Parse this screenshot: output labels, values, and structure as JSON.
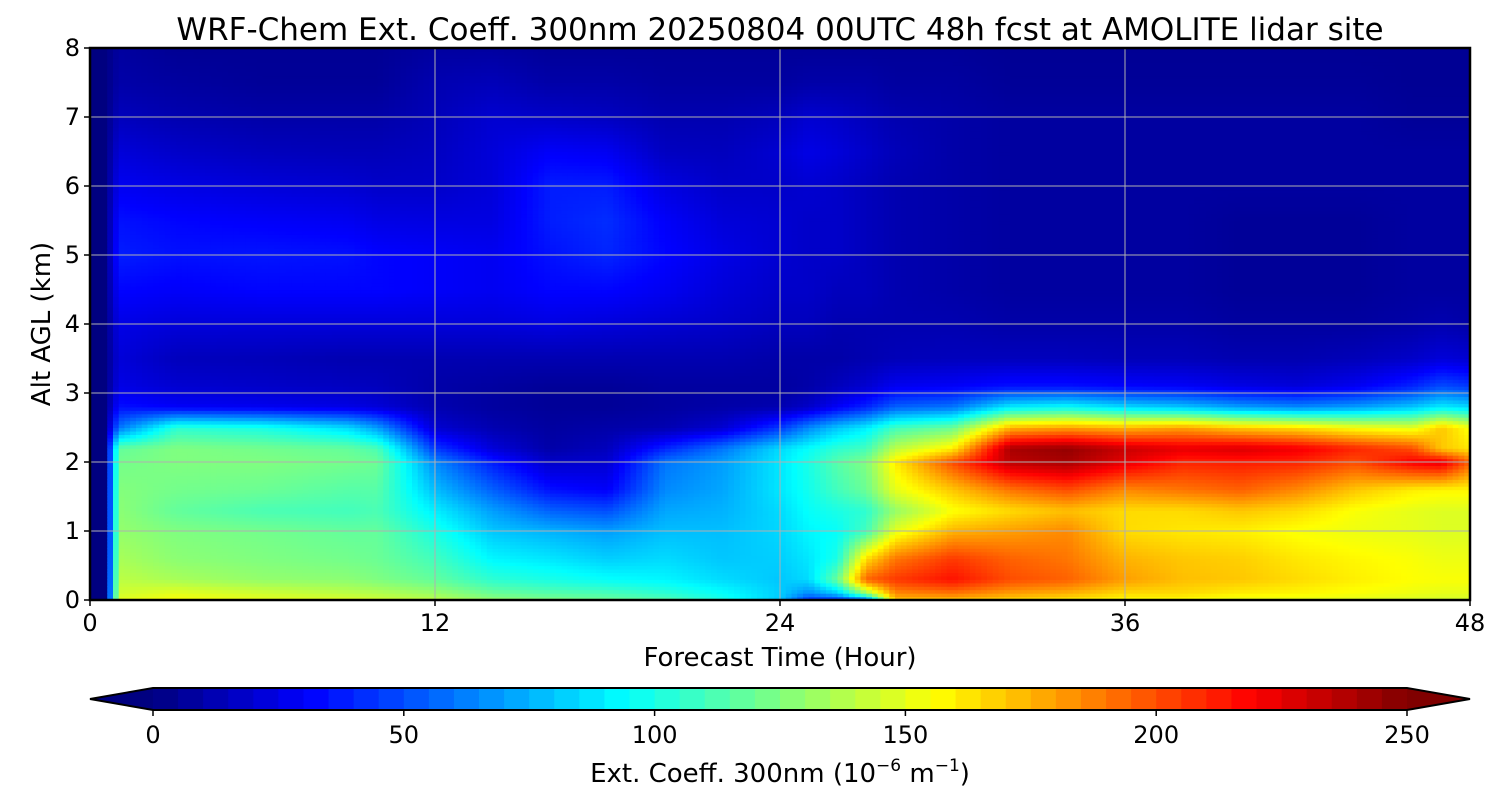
{
  "chart_data": {
    "type": "heatmap",
    "title": "WRF-Chem Ext. Coeff. 300nm  20250804 00UTC 48h fcst at AMOLITE lidar site",
    "xlabel": "Forecast Time (Hour)",
    "ylabel": "Alt AGL (km)",
    "xlim": [
      0,
      48
    ],
    "ylim": [
      0,
      8
    ],
    "xticks": [
      0,
      12,
      24,
      36,
      48
    ],
    "yticks": [
      0,
      1,
      2,
      3,
      4,
      5,
      6,
      7,
      8
    ],
    "grid": true,
    "colormap": "jet",
    "colorbar": {
      "orientation": "horizontal",
      "placement": "bottom",
      "min": 0,
      "max": 250,
      "ticks": [
        0,
        50,
        100,
        150,
        200,
        250
      ],
      "label": "Ext. Coeff. 300nm  (10",
      "label_exp1": "−6",
      "label_mid": " m",
      "label_exp2": "−1",
      "label_end": ")",
      "extend": "both"
    },
    "grid_x": [
      0,
      0.5,
      1,
      3,
      6,
      9,
      10,
      12,
      14,
      16,
      18,
      20,
      22,
      24,
      25,
      26,
      27,
      28,
      30,
      32,
      34,
      36,
      38,
      40,
      42,
      44,
      46,
      47,
      48
    ],
    "grid_y": [
      0,
      0.1,
      0.3,
      0.6,
      1.0,
      1.3,
      1.6,
      2.0,
      2.2,
      2.5,
      2.8,
      3.1,
      3.5,
      4.0,
      4.5,
      5.0,
      5.5,
      6.0,
      6.5,
      7.0,
      7.5,
      8.0
    ],
    "notes_missing": "",
    "values": [
      [
        0,
        0,
        0,
        0,
        0,
        0,
        0,
        0,
        0,
        0,
        0,
        0,
        0,
        0,
        0,
        0,
        0,
        0,
        0,
        0,
        0,
        0
      ],
      [
        0,
        0,
        0,
        0,
        0,
        0,
        0,
        0,
        0,
        0,
        0,
        0,
        0,
        0,
        0,
        0,
        0,
        0,
        0,
        0,
        0,
        0
      ],
      [
        150,
        145,
        140,
        135,
        130,
        128,
        126,
        122,
        118,
        60,
        35,
        25,
        22,
        25,
        32,
        38,
        35,
        28,
        22,
        15,
        10,
        8
      ],
      [
        155,
        150,
        135,
        128,
        125,
        118,
        122,
        125,
        125,
        105,
        30,
        20,
        15,
        22,
        30,
        35,
        32,
        25,
        18,
        12,
        8,
        5
      ],
      [
        150,
        145,
        130,
        125,
        122,
        112,
        120,
        125,
        122,
        100,
        28,
        18,
        14,
        22,
        32,
        36,
        30,
        22,
        15,
        10,
        6,
        5
      ],
      [
        148,
        140,
        128,
        122,
        118,
        110,
        115,
        122,
        118,
        85,
        25,
        16,
        12,
        22,
        32,
        35,
        28,
        20,
        14,
        10,
        6,
        5
      ],
      [
        145,
        138,
        125,
        120,
        118,
        112,
        115,
        120,
        112,
        70,
        22,
        15,
        12,
        22,
        32,
        32,
        25,
        18,
        14,
        10,
        6,
        5
      ],
      [
        140,
        132,
        118,
        110,
        100,
        90,
        78,
        65,
        45,
        20,
        12,
        10,
        12,
        22,
        30,
        30,
        24,
        18,
        16,
        14,
        12,
        8
      ],
      [
        130,
        120,
        105,
        92,
        80,
        70,
        55,
        38,
        22,
        12,
        8,
        8,
        12,
        22,
        28,
        28,
        24,
        22,
        22,
        20,
        14,
        8
      ],
      [
        125,
        115,
        100,
        88,
        75,
        55,
        35,
        18,
        10,
        8,
        6,
        6,
        12,
        24,
        32,
        35,
        38,
        38,
        30,
        18,
        10,
        6
      ],
      [
        120,
        112,
        95,
        82,
        70,
        50,
        30,
        20,
        15,
        10,
        6,
        6,
        12,
        22,
        32,
        40,
        42,
        38,
        28,
        16,
        10,
        6
      ],
      [
        115,
        105,
        92,
        85,
        78,
        72,
        65,
        60,
        40,
        12,
        8,
        8,
        12,
        20,
        28,
        32,
        30,
        24,
        16,
        12,
        8,
        6
      ],
      [
        100,
        95,
        85,
        80,
        78,
        75,
        72,
        70,
        60,
        20,
        10,
        8,
        12,
        18,
        22,
        25,
        22,
        18,
        15,
        12,
        8,
        6
      ],
      [
        80,
        82,
        80,
        82,
        84,
        85,
        88,
        88,
        85,
        45,
        12,
        8,
        10,
        15,
        18,
        20,
        20,
        18,
        20,
        15,
        8,
        6
      ],
      [
        40,
        65,
        85,
        88,
        92,
        95,
        98,
        100,
        95,
        65,
        18,
        10,
        10,
        15,
        18,
        18,
        18,
        20,
        25,
        20,
        10,
        6
      ],
      [
        40,
        80,
        120,
        100,
        95,
        100,
        110,
        115,
        105,
        80,
        30,
        15,
        10,
        12,
        15,
        18,
        18,
        18,
        22,
        18,
        10,
        6
      ],
      [
        50,
        130,
        195,
        165,
        110,
        105,
        120,
        125,
        110,
        90,
        40,
        20,
        12,
        12,
        15,
        15,
        15,
        15,
        18,
        15,
        10,
        6
      ],
      [
        170,
        185,
        205,
        190,
        150,
        130,
        150,
        160,
        140,
        110,
        55,
        28,
        14,
        12,
        12,
        12,
        12,
        12,
        14,
        12,
        8,
        6
      ],
      [
        170,
        190,
        215,
        205,
        175,
        155,
        170,
        200,
        160,
        120,
        60,
        30,
        15,
        12,
        10,
        10,
        10,
        10,
        10,
        10,
        8,
        6
      ],
      [
        165,
        180,
        200,
        195,
        180,
        165,
        190,
        235,
        240,
        175,
        90,
        35,
        15,
        10,
        8,
        8,
        8,
        8,
        8,
        8,
        6,
        5
      ],
      [
        160,
        175,
        195,
        190,
        185,
        172,
        200,
        240,
        245,
        180,
        95,
        35,
        15,
        10,
        8,
        8,
        8,
        8,
        8,
        8,
        6,
        5
      ],
      [
        155,
        165,
        180,
        175,
        165,
        165,
        185,
        225,
        232,
        175,
        85,
        32,
        14,
        10,
        8,
        8,
        8,
        8,
        8,
        8,
        6,
        5
      ],
      [
        155,
        165,
        172,
        170,
        162,
        165,
        190,
        210,
        225,
        180,
        80,
        30,
        14,
        10,
        8,
        8,
        8,
        8,
        8,
        8,
        6,
        5
      ],
      [
        150,
        160,
        170,
        168,
        160,
        170,
        195,
        212,
        228,
        170,
        70,
        25,
        12,
        8,
        6,
        6,
        6,
        8,
        8,
        8,
        6,
        5
      ],
      [
        150,
        158,
        165,
        162,
        155,
        165,
        185,
        210,
        222,
        165,
        65,
        22,
        12,
        8,
        6,
        6,
        6,
        8,
        8,
        8,
        6,
        5
      ],
      [
        148,
        155,
        160,
        158,
        152,
        155,
        170,
        200,
        210,
        155,
        70,
        28,
        14,
        8,
        6,
        6,
        6,
        8,
        8,
        8,
        6,
        5
      ],
      [
        146,
        152,
        156,
        155,
        150,
        150,
        160,
        220,
        200,
        150,
        80,
        40,
        18,
        10,
        8,
        8,
        8,
        8,
        8,
        6,
        5,
        5
      ],
      [
        145,
        150,
        155,
        152,
        148,
        148,
        158,
        225,
        170,
        170,
        90,
        50,
        22,
        12,
        8,
        8,
        8,
        8,
        8,
        6,
        5,
        5
      ],
      [
        145,
        150,
        155,
        152,
        148,
        148,
        158,
        195,
        162,
        155,
        85,
        45,
        20,
        10,
        8,
        8,
        8,
        8,
        8,
        6,
        5,
        5
      ]
    ]
  }
}
